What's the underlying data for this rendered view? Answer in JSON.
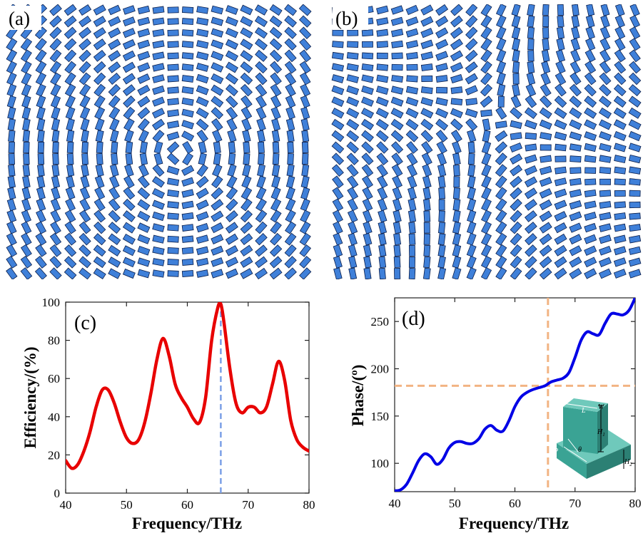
{
  "panels": {
    "a": {
      "label": "(a)"
    },
    "b": {
      "label": "(b)"
    },
    "c": {
      "label": "(c)"
    },
    "d": {
      "label": "(d)"
    }
  },
  "colors": {
    "rod_fill": "#3f80d9",
    "rod_stroke": "#0b1e4a",
    "efficiency_line": "#e80000",
    "efficiency_marker": "#7b9fe6",
    "phase_line": "#0000e6",
    "phase_crosshair": "#f2b483",
    "inset_face": "#3aa394",
    "inset_top": "#6fc9bb",
    "inset_side": "#2c8074"
  },
  "chart_data": [
    {
      "panel": "c",
      "type": "line",
      "xlabel": "Frequency/THz",
      "ylabel": "Efficiency/(%)",
      "xlim": [
        40,
        80
      ],
      "ylim": [
        0,
        100
      ],
      "xticks": [
        40,
        50,
        60,
        70,
        80
      ],
      "yticks": [
        0,
        20,
        40,
        60,
        80,
        100
      ],
      "grid": false,
      "marker_line_x": 65.5,
      "series": [
        {
          "x": [
            40,
            41,
            42,
            43,
            44,
            45,
            46,
            47,
            48,
            49,
            50,
            51,
            52,
            53,
            54,
            55,
            56,
            57,
            58,
            59,
            60,
            61,
            62,
            63,
            64,
            65,
            65.5,
            66,
            67,
            68,
            69,
            70,
            71,
            72,
            73,
            74,
            75,
            76,
            77,
            78,
            79,
            80
          ],
          "values": [
            17,
            13,
            15,
            22,
            32,
            45,
            54,
            54,
            47,
            37,
            29,
            26,
            28,
            37,
            52,
            70,
            81,
            72,
            57,
            50,
            45,
            39,
            37,
            50,
            80,
            97,
            99,
            90,
            65,
            47,
            42,
            45,
            45,
            42,
            45,
            57,
            69,
            59,
            38,
            28,
            24,
            22
          ]
        }
      ]
    },
    {
      "panel": "d",
      "type": "line",
      "xlabel": "Frequency/THz",
      "ylabel": "Phase/(º)",
      "xlim": [
        40,
        80
      ],
      "ylim": [
        70,
        275
      ],
      "xticks": [
        40,
        50,
        60,
        70,
        80
      ],
      "yticks": [
        100,
        150,
        200,
        250
      ],
      "grid": false,
      "crosshair": {
        "x": 65.5,
        "y": 182
      },
      "series": [
        {
          "x": [
            40,
            41,
            42,
            43,
            44,
            45,
            46,
            47,
            48,
            49,
            50,
            51,
            52,
            53,
            54,
            55,
            56,
            57,
            58,
            59,
            60,
            61,
            62,
            63,
            64,
            65,
            66,
            67,
            68,
            69,
            70,
            71,
            72,
            73,
            74,
            75,
            76,
            77,
            78,
            79,
            80
          ],
          "values": [
            71,
            72,
            78,
            90,
            103,
            110,
            107,
            99,
            104,
            116,
            122,
            123,
            121,
            121,
            126,
            136,
            140,
            135,
            134,
            145,
            160,
            170,
            175,
            178,
            180,
            182,
            186,
            188,
            190,
            196,
            212,
            230,
            239,
            237,
            236,
            248,
            258,
            258,
            257,
            262,
            275
          ]
        }
      ],
      "inset_labels": {
        "w": "W",
        "l": "L",
        "h1": "H",
        "h1_sub": "1",
        "p": "P",
        "theta": "θ",
        "h2": "H",
        "h2_sub": "2"
      }
    }
  ]
}
